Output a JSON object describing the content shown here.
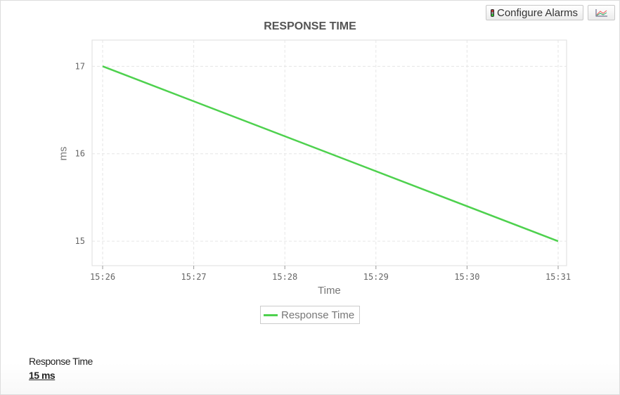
{
  "toolbar": {
    "configure_alarms_label": "Configure Alarms",
    "alarm_icon": "traffic-light-icon",
    "chart_type_icon": "line-chart-icon"
  },
  "chart_data": {
    "type": "line",
    "title": "RESPONSE TIME",
    "xlabel": "Time",
    "ylabel": "ms",
    "x": [
      "15:26",
      "15:31"
    ],
    "x_ticks": [
      "15:26",
      "15:27",
      "15:28",
      "15:29",
      "15:30",
      "15:31"
    ],
    "y_ticks": [
      15,
      16,
      17
    ],
    "ylim": [
      14.72,
      17.3
    ],
    "series": [
      {
        "name": "Response Time",
        "color": "#4ed14e",
        "values": [
          17,
          15
        ]
      }
    ],
    "grid": true,
    "legend": "bottom"
  },
  "summary": {
    "label": "Response Time",
    "value": "15 ms"
  }
}
